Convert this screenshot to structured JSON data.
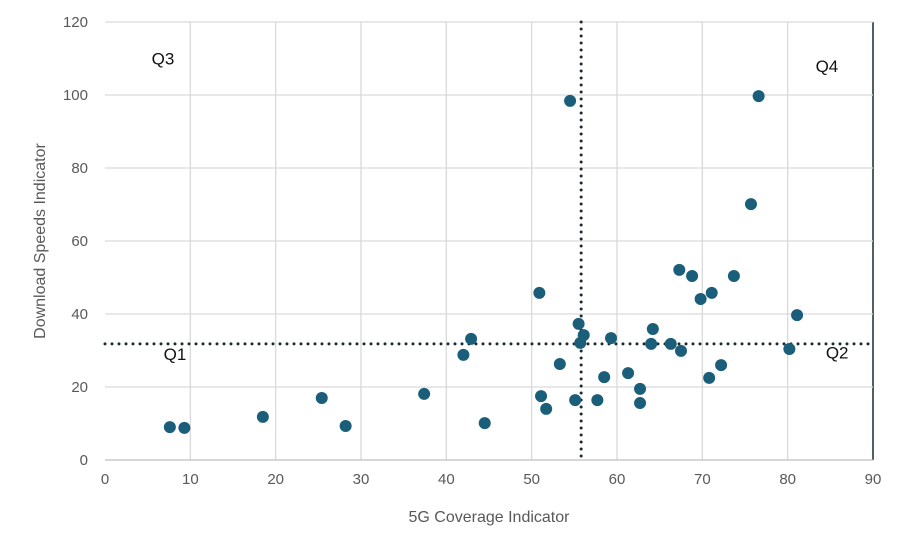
{
  "chart_data": {
    "type": "scatter",
    "title": "",
    "xlabel": "5G Coverage Indicator",
    "ylabel": "Download Speeds Indicator",
    "xlim": [
      0,
      90
    ],
    "ylim": [
      0,
      120
    ],
    "xticks": [
      0,
      10,
      20,
      30,
      40,
      50,
      60,
      70,
      80,
      90
    ],
    "yticks": [
      0,
      20,
      40,
      60,
      80,
      100,
      120
    ],
    "grid": true,
    "marker_color": "#1B5E7A",
    "reference_lines": {
      "x": 55.8,
      "y": 31.8,
      "style": "dotted",
      "color": "#1a2a33"
    },
    "quadrant_labels": [
      {
        "text": "Q3",
        "x": 6.8,
        "y": 110
      },
      {
        "text": "Q4",
        "x": 84.6,
        "y": 108
      },
      {
        "text": "Q1",
        "x": 8.2,
        "y": 29
      },
      {
        "text": "Q2",
        "x": 85.8,
        "y": 29.5
      }
    ],
    "points": [
      [
        7.6,
        9.0
      ],
      [
        9.3,
        8.8
      ],
      [
        18.5,
        11.8
      ],
      [
        25.4,
        17.0
      ],
      [
        28.2,
        9.3
      ],
      [
        37.4,
        18.1
      ],
      [
        42.0,
        28.8
      ],
      [
        42.9,
        33.2
      ],
      [
        44.5,
        10.1
      ],
      [
        50.9,
        45.8
      ],
      [
        51.1,
        17.5
      ],
      [
        51.7,
        14.0
      ],
      [
        53.3,
        26.3
      ],
      [
        54.5,
        98.4
      ],
      [
        55.1,
        16.4
      ],
      [
        55.5,
        37.3
      ],
      [
        55.7,
        32.1
      ],
      [
        56.1,
        34.2
      ],
      [
        57.7,
        16.4
      ],
      [
        58.5,
        22.7
      ],
      [
        59.3,
        33.4
      ],
      [
        61.3,
        23.8
      ],
      [
        62.7,
        19.5
      ],
      [
        62.7,
        15.6
      ],
      [
        64.0,
        31.8
      ],
      [
        64.2,
        35.9
      ],
      [
        66.3,
        31.8
      ],
      [
        67.3,
        52.1
      ],
      [
        67.5,
        29.9
      ],
      [
        68.8,
        50.4
      ],
      [
        69.8,
        44.1
      ],
      [
        70.8,
        22.5
      ],
      [
        71.1,
        45.8
      ],
      [
        72.2,
        26.0
      ],
      [
        73.7,
        50.4
      ],
      [
        75.7,
        70.1
      ],
      [
        76.6,
        99.7
      ],
      [
        80.2,
        30.4
      ],
      [
        81.1,
        39.7
      ]
    ]
  }
}
